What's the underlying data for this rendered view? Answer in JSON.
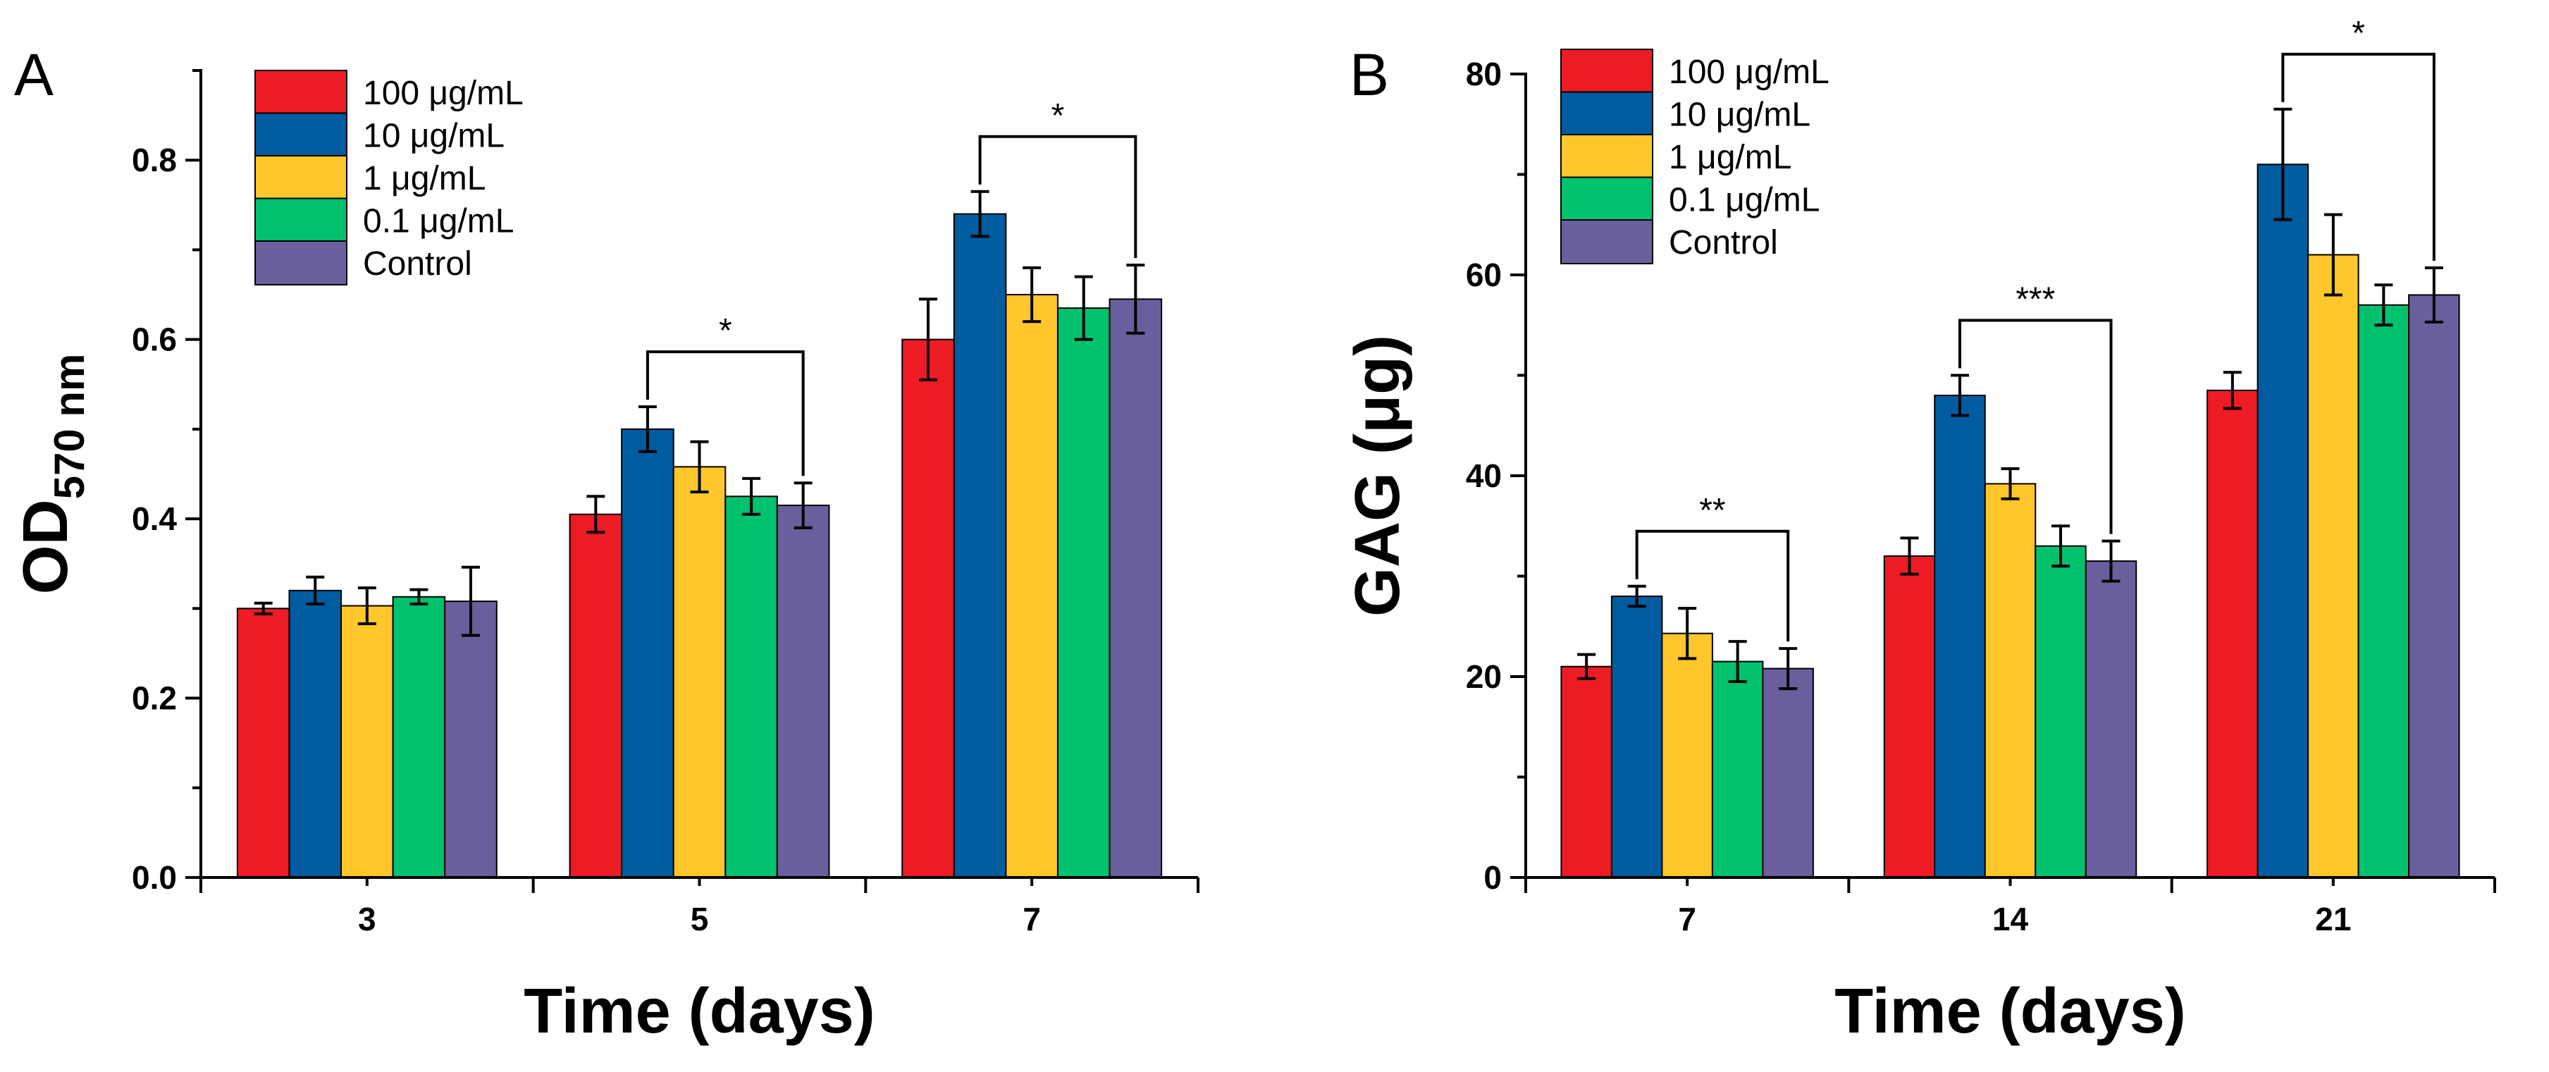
{
  "chart_data": [
    {
      "panel_label": "A",
      "type": "bar",
      "categories": [
        "3",
        "5",
        "7"
      ],
      "xlabel": "Time (days)",
      "ylabel_main": "OD",
      "ylabel_sub": "570 nm",
      "ylim": [
        0,
        0.9
      ],
      "yticks": [
        0.0,
        0.2,
        0.4,
        0.6,
        0.8
      ],
      "ytick_labels": [
        "0.0",
        "0.2",
        "0.4",
        "0.6",
        "0.8"
      ],
      "series": [
        {
          "name": "100 μg/mL",
          "color": "#ed1c24",
          "values": [
            0.3,
            0.405,
            0.6
          ],
          "errors": [
            0.006,
            0.02,
            0.045
          ]
        },
        {
          "name": "10 μg/mL",
          "color": "#005b9f",
          "values": [
            0.32,
            0.5,
            0.74
          ],
          "errors": [
            0.015,
            0.025,
            0.025
          ]
        },
        {
          "name": "1 μg/mL",
          "color": "#ffc72c",
          "values": [
            0.303,
            0.458,
            0.65
          ],
          "errors": [
            0.02,
            0.028,
            0.03
          ]
        },
        {
          "name": "0.1 μg/mL",
          "color": "#00c16e",
          "values": [
            0.313,
            0.425,
            0.635
          ],
          "errors": [
            0.008,
            0.02,
            0.035
          ]
        },
        {
          "name": "Control",
          "color": "#6a5f9c",
          "values": [
            0.308,
            0.415,
            0.645
          ],
          "errors": [
            0.038,
            0.025,
            0.038
          ]
        }
      ],
      "significance": [
        {
          "category": 1,
          "from_series": 1,
          "to_series": 4,
          "label": "*"
        },
        {
          "category": 2,
          "from_series": 1,
          "to_series": 4,
          "label": "*"
        }
      ],
      "legend_position": "top-left"
    },
    {
      "panel_label": "B",
      "type": "bar",
      "categories": [
        "7",
        "14",
        "21"
      ],
      "xlabel": "Time (days)",
      "ylabel_main": "GAG (μg)",
      "ylabel_sub": "",
      "ylim": [
        0,
        80
      ],
      "yticks": [
        0,
        20,
        40,
        60,
        80
      ],
      "ytick_labels": [
        "0",
        "20",
        "40",
        "60",
        "80"
      ],
      "series": [
        {
          "name": "100 μg/mL",
          "color": "#ed1c24",
          "values": [
            21,
            32,
            48.5
          ],
          "errors": [
            1.2,
            1.8,
            1.8
          ]
        },
        {
          "name": "10 μg/mL",
          "color": "#005b9f",
          "values": [
            28,
            48,
            71
          ],
          "errors": [
            1.0,
            2.0,
            5.5
          ]
        },
        {
          "name": "1 μg/mL",
          "color": "#ffc72c",
          "values": [
            24.3,
            39.2,
            62
          ],
          "errors": [
            2.5,
            1.5,
            4.0
          ]
        },
        {
          "name": "0.1 μg/mL",
          "color": "#00c16e",
          "values": [
            21.5,
            33,
            57
          ],
          "errors": [
            2.0,
            2.0,
            2.0
          ]
        },
        {
          "name": "Control",
          "color": "#6a5f9c",
          "values": [
            20.8,
            31.5,
            58
          ],
          "errors": [
            2.0,
            2.0,
            2.7
          ]
        }
      ],
      "significance": [
        {
          "category": 0,
          "from_series": 1,
          "to_series": 4,
          "label": "**"
        },
        {
          "category": 1,
          "from_series": 1,
          "to_series": 4,
          "label": "***"
        },
        {
          "category": 2,
          "from_series": 1,
          "to_series": 4,
          "label": "*"
        }
      ],
      "legend_position": "top-left"
    }
  ]
}
